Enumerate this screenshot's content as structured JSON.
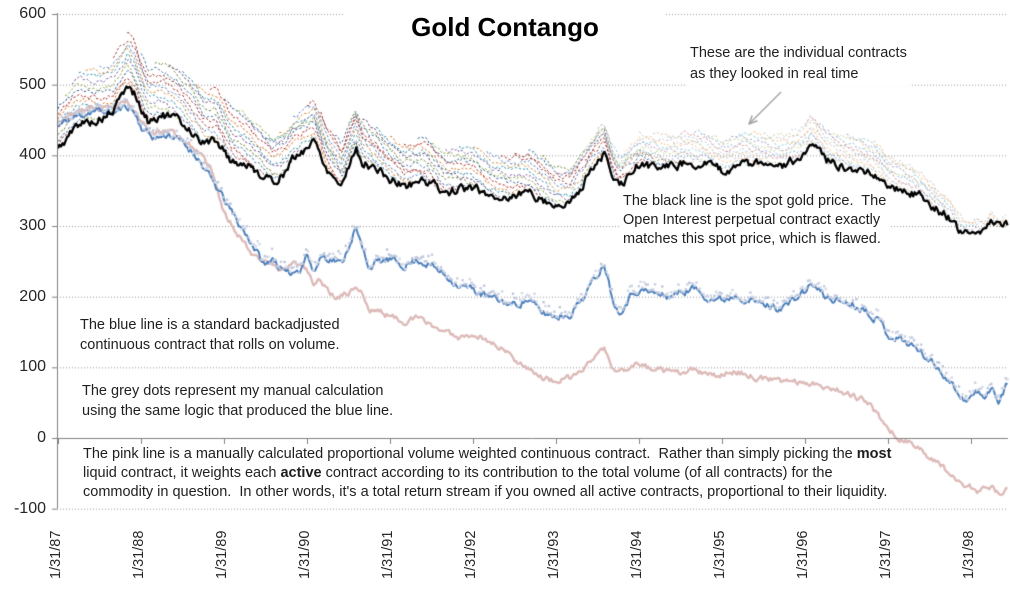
{
  "title": "Gold Contango",
  "annotations": {
    "contracts_note": {
      "lines": [
        "These are the individual contracts",
        "as they looked in real time"
      ]
    },
    "spot_note": {
      "lines": [
        "The black line is the spot gold price.  The",
        "Open Interest perpetual contract exactly",
        "matches this spot price, which is flawed."
      ]
    },
    "blue_note": {
      "lines": [
        "The blue line is a standard backadjusted",
        "continuous contract that rolls on volume."
      ]
    },
    "grey_note": {
      "lines": [
        "The grey dots represent my manual calculation",
        "using the same logic that produced the blue line."
      ]
    },
    "pink_note": {
      "rich_lines": [
        [
          {
            "t": "The pink line is a manually calculated proportional volume weighted continuous contract.  Rather than simply picking the "
          },
          {
            "t": "most",
            "b": true
          }
        ],
        [
          {
            "t": "liquid contract, it weights each "
          },
          {
            "t": "active",
            "b": true
          },
          {
            "t": " contract according to its contribution to the total volume (of all contracts) for the"
          }
        ],
        [
          {
            "t": "commodity in question.  In other words, it's a total return stream if you owned all active contracts, proportional to their liquidity."
          }
        ]
      ]
    }
  },
  "colors": {
    "spot": "#000000",
    "backadjusted": "#4f81bd",
    "proportional": "#ddbbb9",
    "dot_shades": [
      "#c6cfe2",
      "#bcc7dc",
      "#d2d8e6"
    ],
    "gridline": "#999999",
    "axis": "#808080",
    "arrow": "#a3a3a3",
    "text": "#1f1f1f"
  },
  "chart_data": {
    "type": "line",
    "title": "Gold Contango",
    "x_axis": {
      "unit": "months since 1/31/1987",
      "tick_labels": [
        "1/31/87",
        "1/31/88",
        "1/31/89",
        "1/31/90",
        "1/31/91",
        "1/31/92",
        "1/31/93",
        "1/31/94",
        "1/31/95",
        "1/31/96",
        "1/31/97",
        "1/31/98"
      ],
      "months_per_tick": 12,
      "end_month": 137.3
    },
    "y_axis": {
      "min": -100,
      "max": 600,
      "tick_step": 100,
      "grid": "dotted",
      "tick_labels": [
        "600",
        "500",
        "400",
        "300",
        "200",
        "100",
        "0",
        "-100"
      ]
    },
    "series": [
      {
        "name": "spot-gold",
        "label": "Spot gold price (black)",
        "color": "#000000",
        "width": 2.3,
        "anchors": [
          [
            0,
            408
          ],
          [
            3,
            445
          ],
          [
            6,
            450
          ],
          [
            8,
            462
          ],
          [
            10,
            498
          ],
          [
            11,
            488
          ],
          [
            12,
            465
          ],
          [
            13,
            448
          ],
          [
            15,
            457
          ],
          [
            17,
            452
          ],
          [
            19,
            438
          ],
          [
            21,
            417
          ],
          [
            23,
            422
          ],
          [
            25,
            392
          ],
          [
            27,
            388
          ],
          [
            29,
            376
          ],
          [
            31,
            362
          ],
          [
            33,
            378
          ],
          [
            34,
            394
          ],
          [
            36,
            412
          ],
          [
            37,
            421
          ],
          [
            39,
            380
          ],
          [
            41,
            358
          ],
          [
            43,
            412
          ],
          [
            44,
            390
          ],
          [
            46,
            381
          ],
          [
            48,
            366
          ],
          [
            50,
            356
          ],
          [
            53,
            366
          ],
          [
            56,
            348
          ],
          [
            59,
            353
          ],
          [
            60,
            354
          ],
          [
            62,
            344
          ],
          [
            65,
            340
          ],
          [
            68,
            349
          ],
          [
            71,
            333
          ],
          [
            72,
            329
          ],
          [
            74,
            331
          ],
          [
            76,
            362
          ],
          [
            78,
            392
          ],
          [
            79,
            402
          ],
          [
            80,
            372
          ],
          [
            81,
            356
          ],
          [
            83,
            373
          ],
          [
            84,
            387
          ],
          [
            86,
            384
          ],
          [
            89,
            386
          ],
          [
            92,
            391
          ],
          [
            95,
            383
          ],
          [
            96,
            376
          ],
          [
            99,
            390
          ],
          [
            102,
            386
          ],
          [
            105,
            386
          ],
          [
            108,
            400
          ],
          [
            109,
            413
          ],
          [
            111,
            392
          ],
          [
            114,
            383
          ],
          [
            117,
            379
          ],
          [
            119,
            369
          ],
          [
            120,
            355
          ],
          [
            122,
            352
          ],
          [
            125,
            341
          ],
          [
            127,
            324
          ],
          [
            129,
            311
          ],
          [
            130,
            296
          ],
          [
            131,
            288
          ],
          [
            132,
            290
          ],
          [
            133,
            297
          ],
          [
            134,
            295
          ],
          [
            135,
            308
          ],
          [
            136,
            298
          ],
          [
            137,
            305
          ]
        ]
      },
      {
        "name": "backadjusted",
        "label": "Backadjusted continuous contract (blue)",
        "color": "#4f81bd",
        "width": 2,
        "anchors": [
          [
            0,
            442
          ],
          [
            2,
            452
          ],
          [
            5,
            463
          ],
          [
            8,
            460
          ],
          [
            10,
            470
          ],
          [
            11,
            462
          ],
          [
            12,
            440
          ],
          [
            14,
            424
          ],
          [
            16,
            430
          ],
          [
            18,
            418
          ],
          [
            20,
            400
          ],
          [
            22,
            368
          ],
          [
            24,
            338
          ],
          [
            26,
            305
          ],
          [
            28,
            276
          ],
          [
            30,
            242
          ],
          [
            31,
            256
          ],
          [
            33,
            230
          ],
          [
            35,
            240
          ],
          [
            36,
            262
          ],
          [
            37,
            232
          ],
          [
            38,
            258
          ],
          [
            40,
            252
          ],
          [
            41,
            246
          ],
          [
            43,
            297
          ],
          [
            44,
            268
          ],
          [
            45,
            242
          ],
          [
            46,
            248
          ],
          [
            48,
            252
          ],
          [
            50,
            244
          ],
          [
            52,
            252
          ],
          [
            54,
            244
          ],
          [
            56,
            230
          ],
          [
            58,
            216
          ],
          [
            60,
            210
          ],
          [
            62,
            200
          ],
          [
            64,
            194
          ],
          [
            66,
            188
          ],
          [
            68,
            196
          ],
          [
            70,
            177
          ],
          [
            72,
            172
          ],
          [
            74,
            175
          ],
          [
            76,
            200
          ],
          [
            78,
            232
          ],
          [
            79,
            248
          ],
          [
            80,
            205
          ],
          [
            81,
            177
          ],
          [
            82,
            190
          ],
          [
            83,
            205
          ],
          [
            84,
            210
          ],
          [
            86,
            205
          ],
          [
            88,
            200
          ],
          [
            90,
            206
          ],
          [
            92,
            212
          ],
          [
            94,
            199
          ],
          [
            96,
            195
          ],
          [
            98,
            203
          ],
          [
            100,
            195
          ],
          [
            102,
            189
          ],
          [
            104,
            184
          ],
          [
            106,
            192
          ],
          [
            108,
            208
          ],
          [
            109,
            218
          ],
          [
            111,
            199
          ],
          [
            113,
            194
          ],
          [
            115,
            189
          ],
          [
            117,
            180
          ],
          [
            119,
            163
          ],
          [
            120,
            146
          ],
          [
            122,
            139
          ],
          [
            124,
            128
          ],
          [
            126,
            110
          ],
          [
            128,
            92
          ],
          [
            130,
            66
          ],
          [
            131,
            54
          ],
          [
            132,
            58
          ],
          [
            133,
            66
          ],
          [
            134,
            52
          ],
          [
            135,
            76
          ],
          [
            136,
            46
          ],
          [
            137,
            74
          ]
        ]
      },
      {
        "name": "proportional",
        "label": "Proportional volume weighted continuous contract (pink)",
        "color": "#ddbbb9",
        "width": 2.4,
        "anchors": [
          [
            0,
            448
          ],
          [
            2,
            458
          ],
          [
            5,
            468
          ],
          [
            8,
            464
          ],
          [
            10,
            476
          ],
          [
            12,
            448
          ],
          [
            14,
            432
          ],
          [
            16,
            436
          ],
          [
            18,
            424
          ],
          [
            20,
            406
          ],
          [
            22,
            384
          ],
          [
            24,
            318
          ],
          [
            26,
            290
          ],
          [
            28,
            262
          ],
          [
            30,
            252
          ],
          [
            32,
            238
          ],
          [
            34,
            248
          ],
          [
            36,
            238
          ],
          [
            37,
            215
          ],
          [
            38,
            225
          ],
          [
            39,
            208
          ],
          [
            40,
            200
          ],
          [
            42,
            205
          ],
          [
            43,
            215
          ],
          [
            44,
            205
          ],
          [
            45,
            178
          ],
          [
            46,
            182
          ],
          [
            48,
            172
          ],
          [
            50,
            165
          ],
          [
            52,
            170
          ],
          [
            54,
            160
          ],
          [
            56,
            150
          ],
          [
            58,
            143
          ],
          [
            60,
            148
          ],
          [
            62,
            138
          ],
          [
            64,
            128
          ],
          [
            66,
            112
          ],
          [
            68,
            100
          ],
          [
            70,
            85
          ],
          [
            72,
            80
          ],
          [
            74,
            84
          ],
          [
            76,
            98
          ],
          [
            78,
            120
          ],
          [
            79,
            127
          ],
          [
            80,
            100
          ],
          [
            81,
            92
          ],
          [
            82,
            98
          ],
          [
            83,
            104
          ],
          [
            84,
            104
          ],
          [
            86,
            98
          ],
          [
            88,
            95
          ],
          [
            89,
            90
          ],
          [
            92,
            96
          ],
          [
            94,
            88
          ],
          [
            96,
            90
          ],
          [
            98,
            94
          ],
          [
            100,
            88
          ],
          [
            102,
            84
          ],
          [
            104,
            80
          ],
          [
            106,
            82
          ],
          [
            108,
            76
          ],
          [
            109,
            80
          ],
          [
            111,
            72
          ],
          [
            113,
            68
          ],
          [
            115,
            60
          ],
          [
            117,
            50
          ],
          [
            119,
            28
          ],
          [
            120,
            12
          ],
          [
            122,
            -2
          ],
          [
            124,
            -12
          ],
          [
            126,
            -26
          ],
          [
            128,
            -42
          ],
          [
            130,
            -58
          ],
          [
            131,
            -66
          ],
          [
            132,
            -70
          ],
          [
            133,
            -76
          ],
          [
            134,
            -72
          ],
          [
            135,
            -70
          ],
          [
            136,
            -80
          ],
          [
            137,
            -74
          ]
        ]
      },
      {
        "name": "manual-dots",
        "label": "Manual calculation (grey dots)",
        "type": "dots",
        "derived_from": "backadjusted",
        "offset_range": [
          0,
          13
        ],
        "colors": [
          "#c6cfe2",
          "#bcc7dc",
          "#d2d8e6"
        ]
      }
    ],
    "contracts": {
      "label": "Individual contracts (dashed, converge to spot at expiry)",
      "expiry_step_months": 2,
      "window_months": 20,
      "premium_per_month": {
        "early": 3.8,
        "mid": 3.0,
        "late": 2.2
      },
      "premium_era_breaks": [
        48,
        92
      ],
      "light_from_expiry_month": 92,
      "palette": [
        "#96332f",
        "#4572a7",
        "#71893f",
        "#69497c",
        "#31859c",
        "#d97b33",
        "#b02d2a",
        "#2c5a8c",
        "#8faa4b",
        "#7d60a0",
        "#3d96ae",
        "#cc8b3c",
        "#5c87c5",
        "#9e413e"
      ],
      "light_palette": [
        "#d99694",
        "#95b3d7",
        "#c3d69b",
        "#b3a2c7",
        "#92cddc",
        "#fbc08e",
        "#c6c6c6",
        "#d8c9a7",
        "#bdd0e4"
      ]
    }
  }
}
